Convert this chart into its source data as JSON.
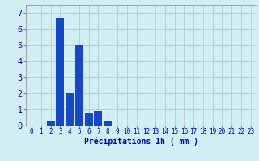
{
  "values": [
    0,
    0,
    0.3,
    6.7,
    2.0,
    5.0,
    0.8,
    0.9,
    0.3,
    0,
    0,
    0,
    0,
    0,
    0,
    0,
    0,
    0,
    0,
    0,
    0,
    0,
    0,
    0
  ],
  "n_bars": 24,
  "ylim": [
    0,
    7.5
  ],
  "yticks": [
    0,
    1,
    2,
    3,
    4,
    5,
    6,
    7
  ],
  "xlabel": "Précipitations 1h ( mm )",
  "bar_color": "#1448c8",
  "bg_color": "#d0eef4",
  "grid_color": "#b0c8cc",
  "tick_color": "#0000bb",
  "label_color": "#0000bb",
  "axis_color": "#888888",
  "xlabel_fontsize": 7,
  "ytick_fontsize": 7,
  "xtick_fontsize": 5.5
}
